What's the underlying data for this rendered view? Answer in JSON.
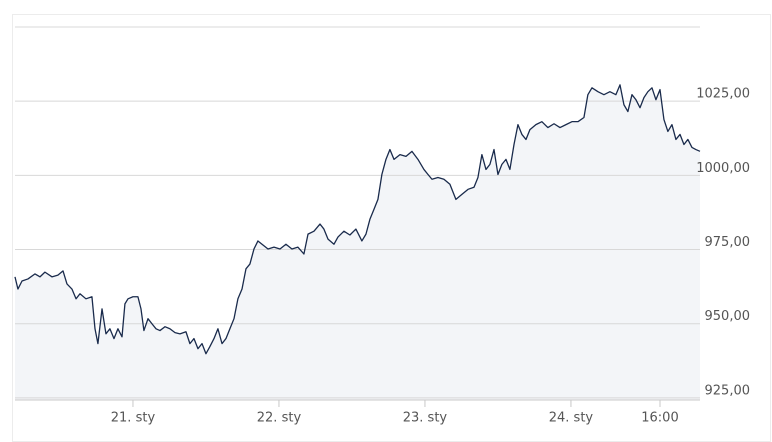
{
  "chart_data": {
    "type": "area",
    "color": "#1a2b4c",
    "fill": "#f3f5f8",
    "grid": true,
    "xlim": [
      20.192,
      24.884
    ],
    "xticks": [
      {
        "value": 21,
        "label": "21. sty"
      },
      {
        "value": 22,
        "label": "22. sty"
      },
      {
        "value": 23,
        "label": "23. sty"
      },
      {
        "value": 24,
        "label": "24. sty"
      },
      {
        "value": 24.61,
        "label": "16:00"
      }
    ],
    "ylim": [
      924.3,
      1050
    ],
    "yticks": [
      {
        "value": 925,
        "label": "925,00"
      },
      {
        "value": 950,
        "label": "950,00"
      },
      {
        "value": 975,
        "label": "975,00"
      },
      {
        "value": 1000,
        "label": "1000,00"
      },
      {
        "value": 1025,
        "label": "1025,00"
      }
    ],
    "x": [
      20.192,
      20.212,
      20.24,
      20.281,
      20.329,
      20.363,
      20.397,
      20.445,
      20.486,
      20.521,
      20.548,
      20.582,
      20.61,
      20.637,
      20.678,
      20.719,
      20.74,
      20.76,
      20.788,
      20.815,
      20.842,
      20.87,
      20.897,
      20.925,
      20.945,
      20.966,
      21,
      21.034,
      21.055,
      21.075,
      21.103,
      21.13,
      21.158,
      21.185,
      21.219,
      21.253,
      21.288,
      21.322,
      21.363,
      21.39,
      21.418,
      21.445,
      21.473,
      21.5,
      21.527,
      21.555,
      21.582,
      21.61,
      21.637,
      21.664,
      21.692,
      21.719,
      21.747,
      21.774,
      21.801,
      21.829,
      21.856,
      21.884,
      21.925,
      21.966,
      22.007,
      22.048,
      22.089,
      22.13,
      22.171,
      22.199,
      22.24,
      22.281,
      22.308,
      22.336,
      22.377,
      22.404,
      22.445,
      22.486,
      22.527,
      22.568,
      22.596,
      22.623,
      22.651,
      22.678,
      22.705,
      22.733,
      22.76,
      22.788,
      22.829,
      22.87,
      22.911,
      22.952,
      22.993,
      23.021,
      23.048,
      23.089,
      23.13,
      23.171,
      23.212,
      23.253,
      23.295,
      23.336,
      23.363,
      23.39,
      23.418,
      23.445,
      23.473,
      23.5,
      23.527,
      23.555,
      23.582,
      23.61,
      23.637,
      23.664,
      23.692,
      23.719,
      23.76,
      23.801,
      23.842,
      23.884,
      23.925,
      23.966,
      24.007,
      24.048,
      24.089,
      24.116,
      24.144,
      24.185,
      24.226,
      24.267,
      24.308,
      24.336,
      24.363,
      24.39,
      24.418,
      24.445,
      24.473,
      24.5,
      24.527,
      24.555,
      24.582,
      24.61,
      24.637,
      24.664,
      24.692,
      24.719,
      24.747,
      24.774,
      24.801,
      24.829,
      24.856,
      24.884
    ],
    "values": [
      965.8,
      961.7,
      964.4,
      965.1,
      966.8,
      965.8,
      967.4,
      965.8,
      966.4,
      967.8,
      963.4,
      961.7,
      958.4,
      960.1,
      958.4,
      959.1,
      948.3,
      943.3,
      955.0,
      946.6,
      948.3,
      945.0,
      948.3,
      945.6,
      956.7,
      958.4,
      959.1,
      959.1,
      955.0,
      947.7,
      951.7,
      950.0,
      948.3,
      947.7,
      949.0,
      948.3,
      947.0,
      946.6,
      947.3,
      943.3,
      945.0,
      941.6,
      943.3,
      939.9,
      942.3,
      945.0,
      948.3,
      943.3,
      945.0,
      948.3,
      951.7,
      958.4,
      961.7,
      968.5,
      970.1,
      975.2,
      977.9,
      976.8,
      975.2,
      975.8,
      975.2,
      976.8,
      975.2,
      975.8,
      973.5,
      980.2,
      981.2,
      983.6,
      981.9,
      978.5,
      976.8,
      979.2,
      981.2,
      979.9,
      981.9,
      977.9,
      980.2,
      985.2,
      988.6,
      991.9,
      1000.3,
      1005.4,
      1008.7,
      1005.4,
      1007.0,
      1006.4,
      1008.1,
      1005.4,
      1002.0,
      1000.3,
      998.7,
      999.3,
      998.7,
      997.0,
      991.9,
      993.6,
      995.3,
      996.0,
      999.3,
      1007.0,
      1002.0,
      1003.7,
      1008.7,
      1000.3,
      1003.7,
      1005.4,
      1002.0,
      1010.4,
      1017.1,
      1013.8,
      1012.1,
      1015.4,
      1017.1,
      1018.1,
      1016.1,
      1017.4,
      1016.1,
      1017.1,
      1018.1,
      1018.1,
      1019.5,
      1027.2,
      1029.5,
      1028.2,
      1027.2,
      1028.2,
      1027.2,
      1030.5,
      1023.8,
      1021.5,
      1027.2,
      1025.5,
      1022.8,
      1026.2,
      1028.2,
      1029.5,
      1025.5,
      1028.9,
      1018.8,
      1014.8,
      1017.1,
      1012.1,
      1013.8,
      1010.4,
      1012.1,
      1009.4,
      1008.7,
      1008.1
    ]
  }
}
